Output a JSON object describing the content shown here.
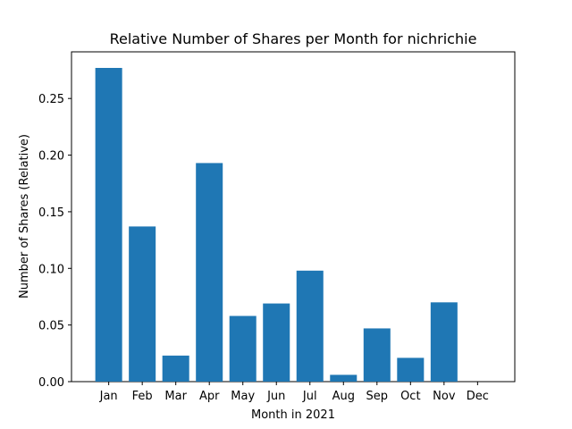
{
  "chart_data": {
    "type": "bar",
    "title": "Relative Number of Shares per Month for nichrichie",
    "xlabel": "Month in 2021",
    "ylabel": "Number of Shares (Relative)",
    "categories": [
      "Jan",
      "Feb",
      "Mar",
      "Apr",
      "May",
      "Jun",
      "Jul",
      "Aug",
      "Sep",
      "Oct",
      "Nov",
      "Dec"
    ],
    "values": [
      0.277,
      0.137,
      0.023,
      0.193,
      0.058,
      0.069,
      0.098,
      0.006,
      0.047,
      0.021,
      0.07,
      0.0
    ],
    "ylim": [
      0,
      0.2912
    ],
    "yticks": [
      0.0,
      0.05,
      0.1,
      0.15,
      0.2,
      0.25
    ],
    "ytick_labels": [
      "0.00",
      "0.05",
      "0.10",
      "0.15",
      "0.20",
      "0.25"
    ],
    "grid": false,
    "bar_color": "#1f77b4"
  }
}
